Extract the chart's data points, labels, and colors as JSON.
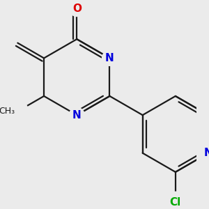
{
  "background_color": "#ebebeb",
  "bond_color": "#1a1a1a",
  "n_color": "#0000dd",
  "o_color": "#dd0000",
  "cl_color": "#00aa00",
  "bond_width": 1.6,
  "dbo": 0.09,
  "font_size": 11,
  "figsize": [
    3.0,
    3.0
  ],
  "dpi": 100,
  "xlim": [
    -2.2,
    2.6
  ],
  "ylim": [
    -2.8,
    2.4
  ]
}
